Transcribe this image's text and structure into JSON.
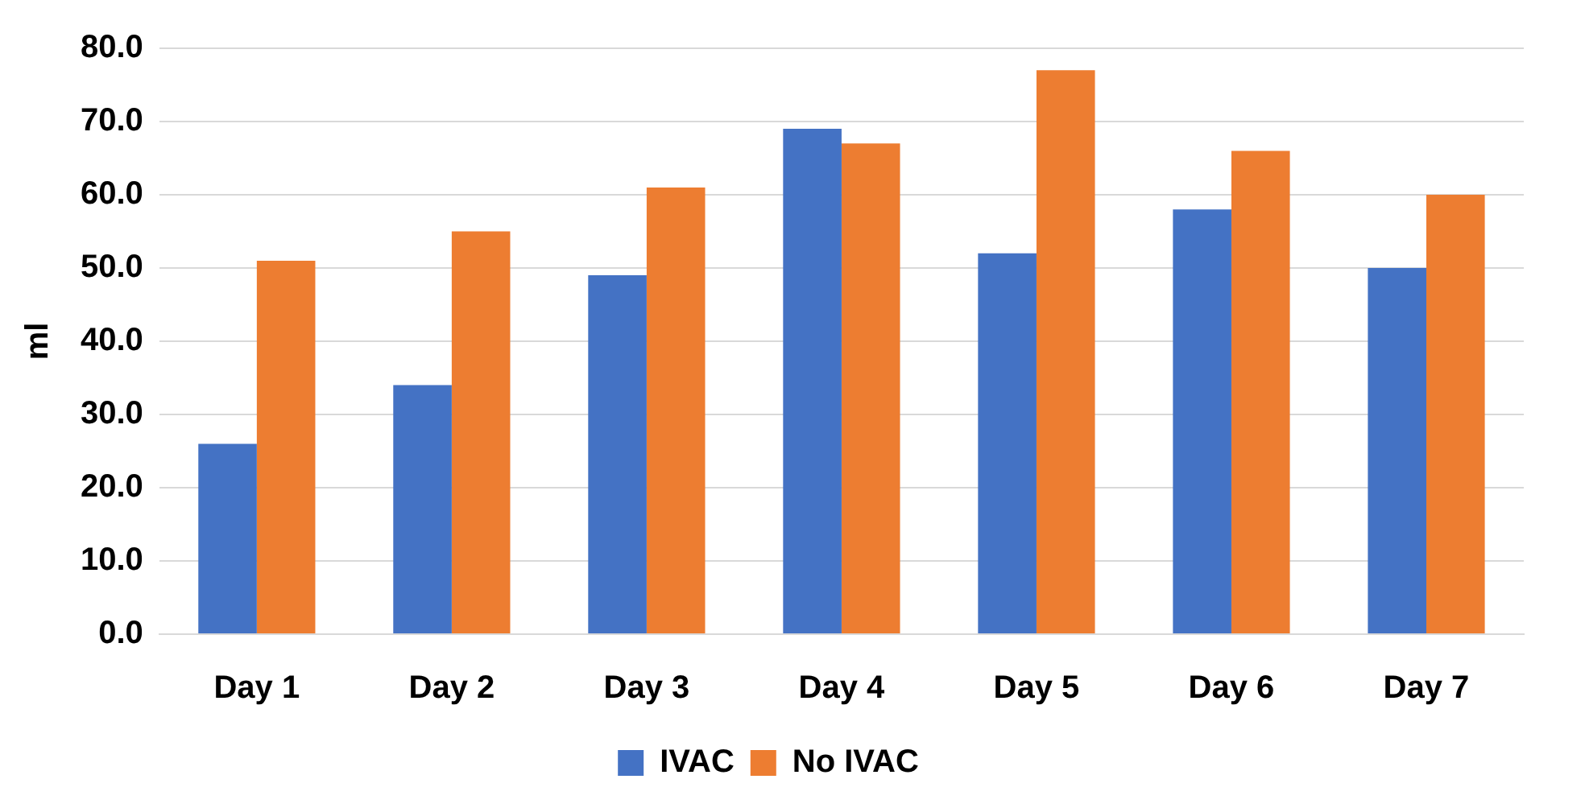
{
  "chart_data": {
    "type": "bar",
    "ylabel": "ml",
    "categories": [
      "Day 1",
      "Day 2",
      "Day 3",
      "Day 4",
      "Day 5",
      "Day 6",
      "Day 7"
    ],
    "series": [
      {
        "name": "IVAC",
        "color": "#4472c4",
        "values": [
          26,
          34,
          49,
          69,
          52,
          58,
          50
        ]
      },
      {
        "name": "No IVAC",
        "color": "#ed7d31",
        "values": [
          51,
          55,
          61,
          67,
          77,
          66,
          60
        ]
      }
    ],
    "ylim": [
      0,
      80
    ],
    "yticks": [
      {
        "value": 0,
        "label": "0.0"
      },
      {
        "value": 10,
        "label": "10.0"
      },
      {
        "value": 20,
        "label": "20.0"
      },
      {
        "value": 30,
        "label": "30.0"
      },
      {
        "value": 40,
        "label": "40.0"
      },
      {
        "value": 50,
        "label": "50.0"
      },
      {
        "value": 60,
        "label": "60.0"
      },
      {
        "value": 70,
        "label": "70.0"
      },
      {
        "value": 80,
        "label": "80.0"
      }
    ],
    "grid": "y",
    "legend": "bottom"
  }
}
